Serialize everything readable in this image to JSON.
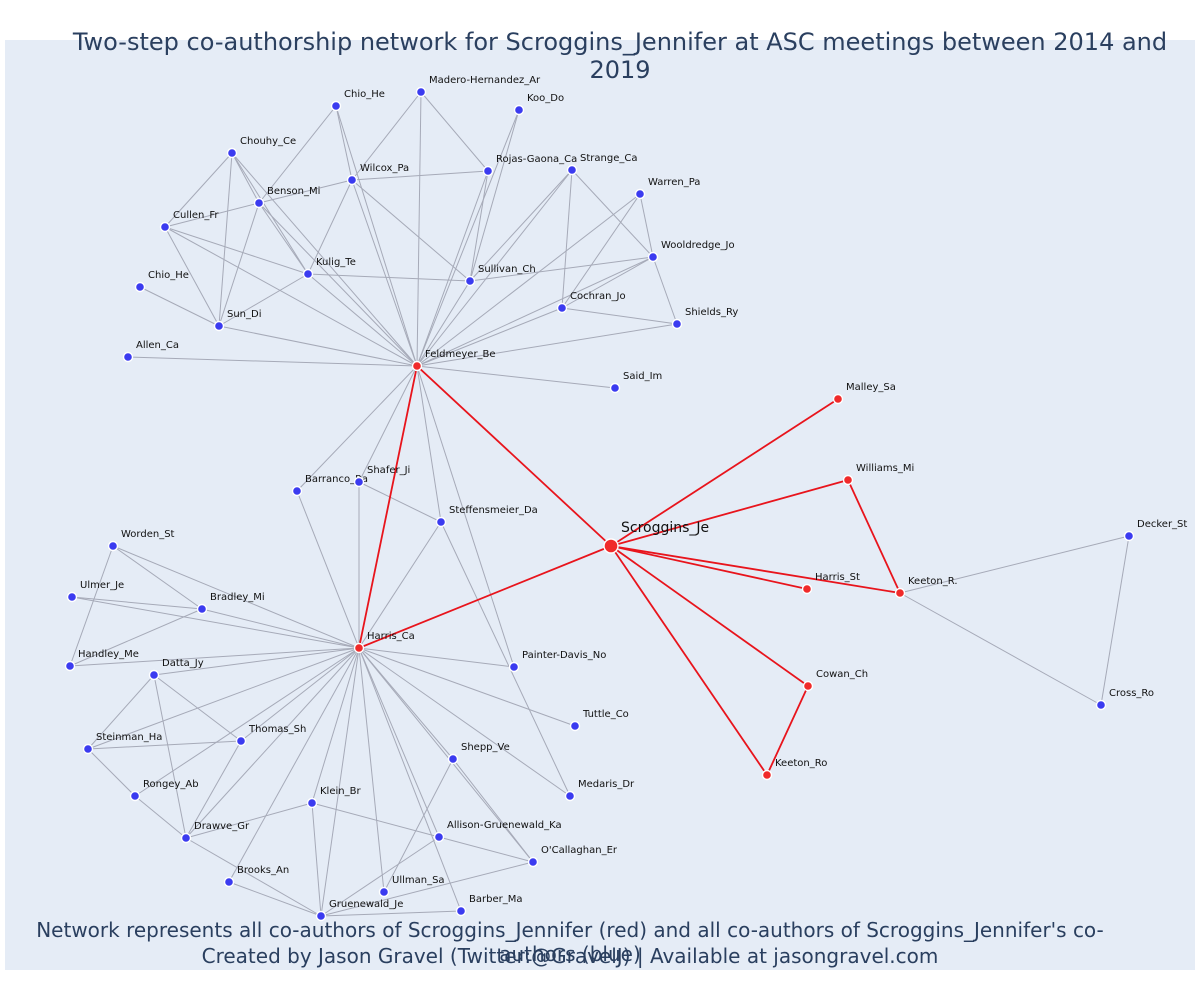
{
  "title": "Two-step co-authorship network for Scroggins_Jennifer at ASC meetings between 2014 and 2019",
  "caption_line1": "Network represents all co-authors of Scroggins_Jennifer (red) and all co-authors of Scroggins_Jennifer's co-authors (blue)",
  "caption_line2": "Created by Jason Gravel (Twitter:@GravelJ) | Available at jasongravel.com",
  "colors": {
    "background": "#e5ecf6",
    "red": "#e8141c",
    "blue": "#3b3bf0",
    "edge": "#a6aab8",
    "text": "#2a3f5f"
  },
  "nodes": [
    {
      "id": "Scroggins_Je",
      "label": "Scroggins_Je",
      "group": "center"
    },
    {
      "id": "Feldmeyer_Be",
      "label": "Feldmeyer_Be",
      "group": "red"
    },
    {
      "id": "Harris_Ca",
      "label": "Harris_Ca",
      "group": "red"
    },
    {
      "id": "Malley_Sa",
      "label": "Malley_Sa",
      "group": "red"
    },
    {
      "id": "Williams_Mi",
      "label": "Williams_Mi",
      "group": "red"
    },
    {
      "id": "Harris_St",
      "label": "Harris_St",
      "group": "red"
    },
    {
      "id": "Keeton_R.",
      "label": "Keeton_R.",
      "group": "red"
    },
    {
      "id": "Cowan_Ch",
      "label": "Cowan_Ch",
      "group": "red"
    },
    {
      "id": "Keeton_Ro",
      "label": "Keeton_Ro",
      "group": "red"
    },
    {
      "id": "Chio_He_1",
      "label": "Chio_He",
      "group": "blue"
    },
    {
      "id": "Madero-Hernandez_Ar",
      "label": "Madero-Hernandez_Ar",
      "group": "blue"
    },
    {
      "id": "Koo_Do",
      "label": "Koo_Do",
      "group": "blue"
    },
    {
      "id": "Chouhy_Ce",
      "label": "Chouhy_Ce",
      "group": "blue"
    },
    {
      "id": "Wilcox_Pa",
      "label": "Wilcox_Pa",
      "group": "blue"
    },
    {
      "id": "Rojas-Gaona_Ca",
      "label": "Rojas-Gaona_Ca",
      "group": "blue"
    },
    {
      "id": "Strange_Ca",
      "label": "Strange_Ca",
      "group": "blue"
    },
    {
      "id": "Warren_Pa",
      "label": "Warren_Pa",
      "group": "blue"
    },
    {
      "id": "Benson_Mi",
      "label": "Benson_Mi",
      "group": "blue"
    },
    {
      "id": "Cullen_Fr",
      "label": "Cullen_Fr",
      "group": "blue"
    },
    {
      "id": "Wooldredge_Jo",
      "label": "Wooldredge_Jo",
      "group": "blue"
    },
    {
      "id": "Kulig_Te",
      "label": "Kulig_Te",
      "group": "blue"
    },
    {
      "id": "Sullivan_Ch",
      "label": "Sullivan_Ch",
      "group": "blue"
    },
    {
      "id": "Chio_He_2",
      "label": "Chio_He",
      "group": "blue"
    },
    {
      "id": "Cochran_Jo",
      "label": "Cochran_Jo",
      "group": "blue"
    },
    {
      "id": "Shields_Ry",
      "label": "Shields_Ry",
      "group": "blue"
    },
    {
      "id": "Sun_Di",
      "label": "Sun_Di",
      "group": "blue"
    },
    {
      "id": "Allen_Ca",
      "label": "Allen_Ca",
      "group": "blue"
    },
    {
      "id": "Said_Im",
      "label": "Said_Im",
      "group": "blue"
    },
    {
      "id": "Barranco_Ra",
      "label": "Barranco_Ra",
      "group": "blue"
    },
    {
      "id": "Shafer_Ji",
      "label": "Shafer_Ji",
      "group": "blue"
    },
    {
      "id": "Steffensmeier_Da",
      "label": "Steffensmeier_Da",
      "group": "blue"
    },
    {
      "id": "Worden_St",
      "label": "Worden_St",
      "group": "blue"
    },
    {
      "id": "Ulmer_Je",
      "label": "Ulmer_Je",
      "group": "blue"
    },
    {
      "id": "Bradley_Mi",
      "label": "Bradley_Mi",
      "group": "blue"
    },
    {
      "id": "Handley_Me",
      "label": "Handley_Me",
      "group": "blue"
    },
    {
      "id": "Datta_Jy",
      "label": "Datta_Jy",
      "group": "blue"
    },
    {
      "id": "Painter-Davis_No",
      "label": "Painter-Davis_No",
      "group": "blue"
    },
    {
      "id": "Tuttle_Co",
      "label": "Tuttle_Co",
      "group": "blue"
    },
    {
      "id": "Steinman_Ha",
      "label": "Steinman_Ha",
      "group": "blue"
    },
    {
      "id": "Thomas_Sh",
      "label": "Thomas_Sh",
      "group": "blue"
    },
    {
      "id": "Shepp_Ve",
      "label": "Shepp_Ve",
      "group": "blue"
    },
    {
      "id": "Rongey_Ab",
      "label": "Rongey_Ab",
      "group": "blue"
    },
    {
      "id": "Medaris_Dr",
      "label": "Medaris_Dr",
      "group": "blue"
    },
    {
      "id": "Klein_Br",
      "label": "Klein_Br",
      "group": "blue"
    },
    {
      "id": "Drawve_Gr",
      "label": "Drawve_Gr",
      "group": "blue"
    },
    {
      "id": "Allison-Gruenewald_Ka",
      "label": "Allison-Gruenewald_Ka",
      "group": "blue"
    },
    {
      "id": "O'Callaghan_Er",
      "label": "O'Callaghan_Er",
      "group": "blue"
    },
    {
      "id": "Brooks_An",
      "label": "Brooks_An",
      "group": "blue"
    },
    {
      "id": "Ullman_Sa",
      "label": "Ullman_Sa",
      "group": "blue"
    },
    {
      "id": "Barber_Ma",
      "label": "Barber_Ma",
      "group": "blue"
    },
    {
      "id": "Gruenewald_Je",
      "label": "Gruenewald_Je",
      "group": "blue"
    },
    {
      "id": "Decker_St",
      "label": "Decker_St",
      "group": "blue"
    },
    {
      "id": "Cross_Ro",
      "label": "Cross_Ro",
      "group": "blue"
    }
  ],
  "edges": [
    [
      "Scroggins_Je",
      "Feldmeyer_Be",
      "red"
    ],
    [
      "Scroggins_Je",
      "Harris_Ca",
      "red"
    ],
    [
      "Scroggins_Je",
      "Malley_Sa",
      "red"
    ],
    [
      "Scroggins_Je",
      "Williams_Mi",
      "red"
    ],
    [
      "Scroggins_Je",
      "Harris_St",
      "red"
    ],
    [
      "Scroggins_Je",
      "Keeton_R.",
      "red"
    ],
    [
      "Scroggins_Je",
      "Cowan_Ch",
      "red"
    ],
    [
      "Scroggins_Je",
      "Keeton_Ro",
      "red"
    ],
    [
      "Feldmeyer_Be",
      "Harris_Ca",
      "red"
    ],
    [
      "Williams_Mi",
      "Keeton_R.",
      "red"
    ],
    [
      "Cowan_Ch",
      "Keeton_Ro",
      "red"
    ],
    [
      "Keeton_R.",
      "Decker_St",
      "blue"
    ],
    [
      "Keeton_R.",
      "Cross_Ro",
      "blue"
    ],
    [
      "Decker_St",
      "Cross_Ro",
      "blue"
    ],
    [
      "Feldmeyer_Be",
      "Chio_He_1",
      "blue"
    ],
    [
      "Feldmeyer_Be",
      "Madero-Hernandez_Ar",
      "blue"
    ],
    [
      "Feldmeyer_Be",
      "Koo_Do",
      "blue"
    ],
    [
      "Feldmeyer_Be",
      "Chouhy_Ce",
      "blue"
    ],
    [
      "Feldmeyer_Be",
      "Wilcox_Pa",
      "blue"
    ],
    [
      "Feldmeyer_Be",
      "Rojas-Gaona_Ca",
      "blue"
    ],
    [
      "Feldmeyer_Be",
      "Strange_Ca",
      "blue"
    ],
    [
      "Feldmeyer_Be",
      "Warren_Pa",
      "blue"
    ],
    [
      "Feldmeyer_Be",
      "Benson_Mi",
      "blue"
    ],
    [
      "Feldmeyer_Be",
      "Cullen_Fr",
      "blue"
    ],
    [
      "Feldmeyer_Be",
      "Wooldredge_Jo",
      "blue"
    ],
    [
      "Feldmeyer_Be",
      "Kulig_Te",
      "blue"
    ],
    [
      "Feldmeyer_Be",
      "Sullivan_Ch",
      "blue"
    ],
    [
      "Feldmeyer_Be",
      "Cochran_Jo",
      "blue"
    ],
    [
      "Feldmeyer_Be",
      "Shields_Ry",
      "blue"
    ],
    [
      "Feldmeyer_Be",
      "Sun_Di",
      "blue"
    ],
    [
      "Feldmeyer_Be",
      "Allen_Ca",
      "blue"
    ],
    [
      "Feldmeyer_Be",
      "Said_Im",
      "blue"
    ],
    [
      "Feldmeyer_Be",
      "Barranco_Ra",
      "blue"
    ],
    [
      "Feldmeyer_Be",
      "Shafer_Ji",
      "blue"
    ],
    [
      "Feldmeyer_Be",
      "Steffensmeier_Da",
      "blue"
    ],
    [
      "Feldmeyer_Be",
      "Painter-Davis_No",
      "blue"
    ],
    [
      "Chio_He_1",
      "Benson_Mi",
      "blue"
    ],
    [
      "Chio_He_1",
      "Wilcox_Pa",
      "blue"
    ],
    [
      "Madero-Hernandez_Ar",
      "Wilcox_Pa",
      "blue"
    ],
    [
      "Madero-Hernandez_Ar",
      "Rojas-Gaona_Ca",
      "blue"
    ],
    [
      "Koo_Do",
      "Sullivan_Ch",
      "blue"
    ],
    [
      "Chouhy_Ce",
      "Cullen_Fr",
      "blue"
    ],
    [
      "Chouhy_Ce",
      "Sun_Di",
      "blue"
    ],
    [
      "Chouhy_Ce",
      "Kulig_Te",
      "blue"
    ],
    [
      "Chouhy_Ce",
      "Benson_Mi",
      "blue"
    ],
    [
      "Wilcox_Pa",
      "Rojas-Gaona_Ca",
      "blue"
    ],
    [
      "Wilcox_Pa",
      "Kulig_Te",
      "blue"
    ],
    [
      "Wilcox_Pa",
      "Sullivan_Ch",
      "blue"
    ],
    [
      "Wilcox_Pa",
      "Benson_Mi",
      "blue"
    ],
    [
      "Rojas-Gaona_Ca",
      "Sullivan_Ch",
      "blue"
    ],
    [
      "Strange_Ca",
      "Sullivan_Ch",
      "blue"
    ],
    [
      "Strange_Ca",
      "Cochran_Jo",
      "blue"
    ],
    [
      "Strange_Ca",
      "Wooldredge_Jo",
      "blue"
    ],
    [
      "Warren_Pa",
      "Cochran_Jo",
      "blue"
    ],
    [
      "Warren_Pa",
      "Wooldredge_Jo",
      "blue"
    ],
    [
      "Wooldredge_Jo",
      "Shields_Ry",
      "blue"
    ],
    [
      "Wooldredge_Jo",
      "Sullivan_Ch",
      "blue"
    ],
    [
      "Wooldredge_Jo",
      "Cochran_Jo",
      "blue"
    ],
    [
      "Cochran_Jo",
      "Shields_Ry",
      "blue"
    ],
    [
      "Benson_Mi",
      "Cullen_Fr",
      "blue"
    ],
    [
      "Benson_Mi",
      "Sun_Di",
      "blue"
    ],
    [
      "Benson_Mi",
      "Kulig_Te",
      "blue"
    ],
    [
      "Cullen_Fr",
      "Kulig_Te",
      "blue"
    ],
    [
      "Cullen_Fr",
      "Sun_Di",
      "blue"
    ],
    [
      "Kulig_Te",
      "Sun_Di",
      "blue"
    ],
    [
      "Kulig_Te",
      "Sullivan_Ch",
      "blue"
    ],
    [
      "Sun_Di",
      "Chio_He_2",
      "blue"
    ],
    [
      "Harris_Ca",
      "Barranco_Ra",
      "blue"
    ],
    [
      "Harris_Ca",
      "Shafer_Ji",
      "blue"
    ],
    [
      "Harris_Ca",
      "Steffensmeier_Da",
      "blue"
    ],
    [
      "Harris_Ca",
      "Worden_St",
      "blue"
    ],
    [
      "Harris_Ca",
      "Ulmer_Je",
      "blue"
    ],
    [
      "Harris_Ca",
      "Bradley_Mi",
      "blue"
    ],
    [
      "Harris_Ca",
      "Handley_Me",
      "blue"
    ],
    [
      "Harris_Ca",
      "Datta_Jy",
      "blue"
    ],
    [
      "Harris_Ca",
      "Painter-Davis_No",
      "blue"
    ],
    [
      "Harris_Ca",
      "Tuttle_Co",
      "blue"
    ],
    [
      "Harris_Ca",
      "Steinman_Ha",
      "blue"
    ],
    [
      "Harris_Ca",
      "Thomas_Sh",
      "blue"
    ],
    [
      "Harris_Ca",
      "Shepp_Ve",
      "blue"
    ],
    [
      "Harris_Ca",
      "Rongey_Ab",
      "blue"
    ],
    [
      "Harris_Ca",
      "Medaris_Dr",
      "blue"
    ],
    [
      "Harris_Ca",
      "Klein_Br",
      "blue"
    ],
    [
      "Harris_Ca",
      "Drawve_Gr",
      "blue"
    ],
    [
      "Harris_Ca",
      "Allison-Gruenewald_Ka",
      "blue"
    ],
    [
      "Harris_Ca",
      "O'Callaghan_Er",
      "blue"
    ],
    [
      "Harris_Ca",
      "Brooks_An",
      "blue"
    ],
    [
      "Harris_Ca",
      "Ullman_Sa",
      "blue"
    ],
    [
      "Harris_Ca",
      "Barber_Ma",
      "blue"
    ],
    [
      "Harris_Ca",
      "Gruenewald_Je",
      "blue"
    ],
    [
      "Shafer_Ji",
      "Steffensmeier_Da",
      "blue"
    ],
    [
      "Steffensmeier_Da",
      "Medaris_Dr",
      "blue"
    ],
    [
      "Worden_St",
      "Bradley_Mi",
      "blue"
    ],
    [
      "Worden_St",
      "Handley_Me",
      "blue"
    ],
    [
      "Ulmer_Je",
      "Bradley_Mi",
      "blue"
    ],
    [
      "Handley_Me",
      "Bradley_Mi",
      "blue"
    ],
    [
      "Datta_Jy",
      "Steinman_Ha",
      "blue"
    ],
    [
      "Datta_Jy",
      "Thomas_Sh",
      "blue"
    ],
    [
      "Datta_Jy",
      "Drawve_Gr",
      "blue"
    ],
    [
      "Steinman_Ha",
      "Thomas_Sh",
      "blue"
    ],
    [
      "Steinman_Ha",
      "Rongey_Ab",
      "blue"
    ],
    [
      "Rongey_Ab",
      "Drawve_Gr",
      "blue"
    ],
    [
      "Thomas_Sh",
      "Drawve_Gr",
      "blue"
    ],
    [
      "Drawve_Gr",
      "Klein_Br",
      "blue"
    ],
    [
      "Drawve_Gr",
      "Gruenewald_Je",
      "blue"
    ],
    [
      "Klein_Br",
      "Allison-Gruenewald_Ka",
      "blue"
    ],
    [
      "Klein_Br",
      "Gruenewald_Je",
      "blue"
    ],
    [
      "Shepp_Ve",
      "Ullman_Sa",
      "blue"
    ],
    [
      "Shepp_Ve",
      "O'Callaghan_Er",
      "blue"
    ],
    [
      "Allison-Gruenewald_Ka",
      "Gruenewald_Je",
      "blue"
    ],
    [
      "Allison-Gruenewald_Ka",
      "O'Callaghan_Er",
      "blue"
    ],
    [
      "O'Callaghan_Er",
      "Gruenewald_Je",
      "blue"
    ],
    [
      "Brooks_An",
      "Gruenewald_Je",
      "blue"
    ],
    [
      "Barber_Ma",
      "Gruenewald_Je",
      "blue"
    ]
  ]
}
